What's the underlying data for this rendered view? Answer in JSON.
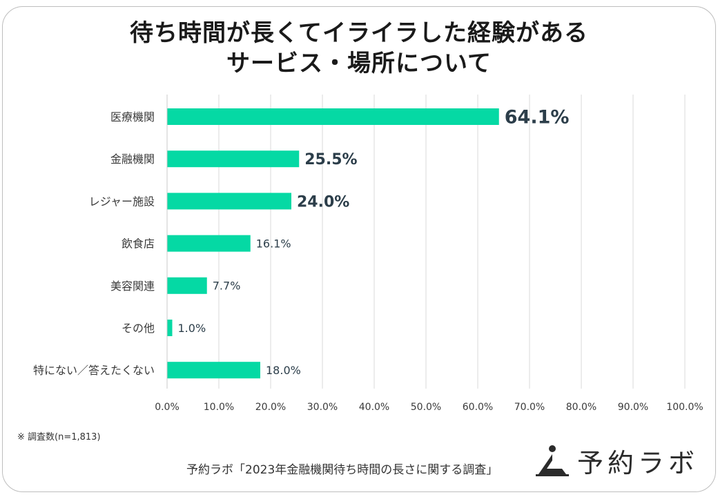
{
  "title_line1": "待ち時間が長くてイライラした経験がある",
  "title_line2": "サービス・場所について",
  "chart_data": {
    "type": "bar",
    "orientation": "horizontal",
    "title": "待ち時間が長くてイライラした経験があるサービス・場所について",
    "categories": [
      "医療機関",
      "金融機関",
      "レジャー施設",
      "飲食店",
      "美容関連",
      "その他",
      "特にない／答えたくない"
    ],
    "values": [
      64.1,
      25.5,
      24.0,
      16.1,
      7.7,
      1.0,
      18.0
    ],
    "value_labels": [
      "64.1%",
      "25.5%",
      "24.0%",
      "16.1%",
      "7.7%",
      "1.0%",
      "18.0%"
    ],
    "emphasized": [
      true,
      true,
      true,
      false,
      false,
      false,
      false
    ],
    "xlim": [
      0,
      100
    ],
    "xticks": [
      "0.0%",
      "10.0%",
      "20.0%",
      "30.0%",
      "40.0%",
      "50.0%",
      "60.0%",
      "70.0%",
      "80.0%",
      "90.0%",
      "100.0%"
    ],
    "grid": true,
    "bar_color": "#05d9a4"
  },
  "footnote": "※ 調査数(n=1,813)",
  "source": "予約ラボ「2023年金融機関待ち時間の長さに関する調査」",
  "logo": {
    "text": "予約ラボ",
    "icon": "person-triangle-icon"
  },
  "colors": {
    "bar": "#05d9a4",
    "label": "#2c3e4a",
    "grid": "#d9d9d9"
  }
}
